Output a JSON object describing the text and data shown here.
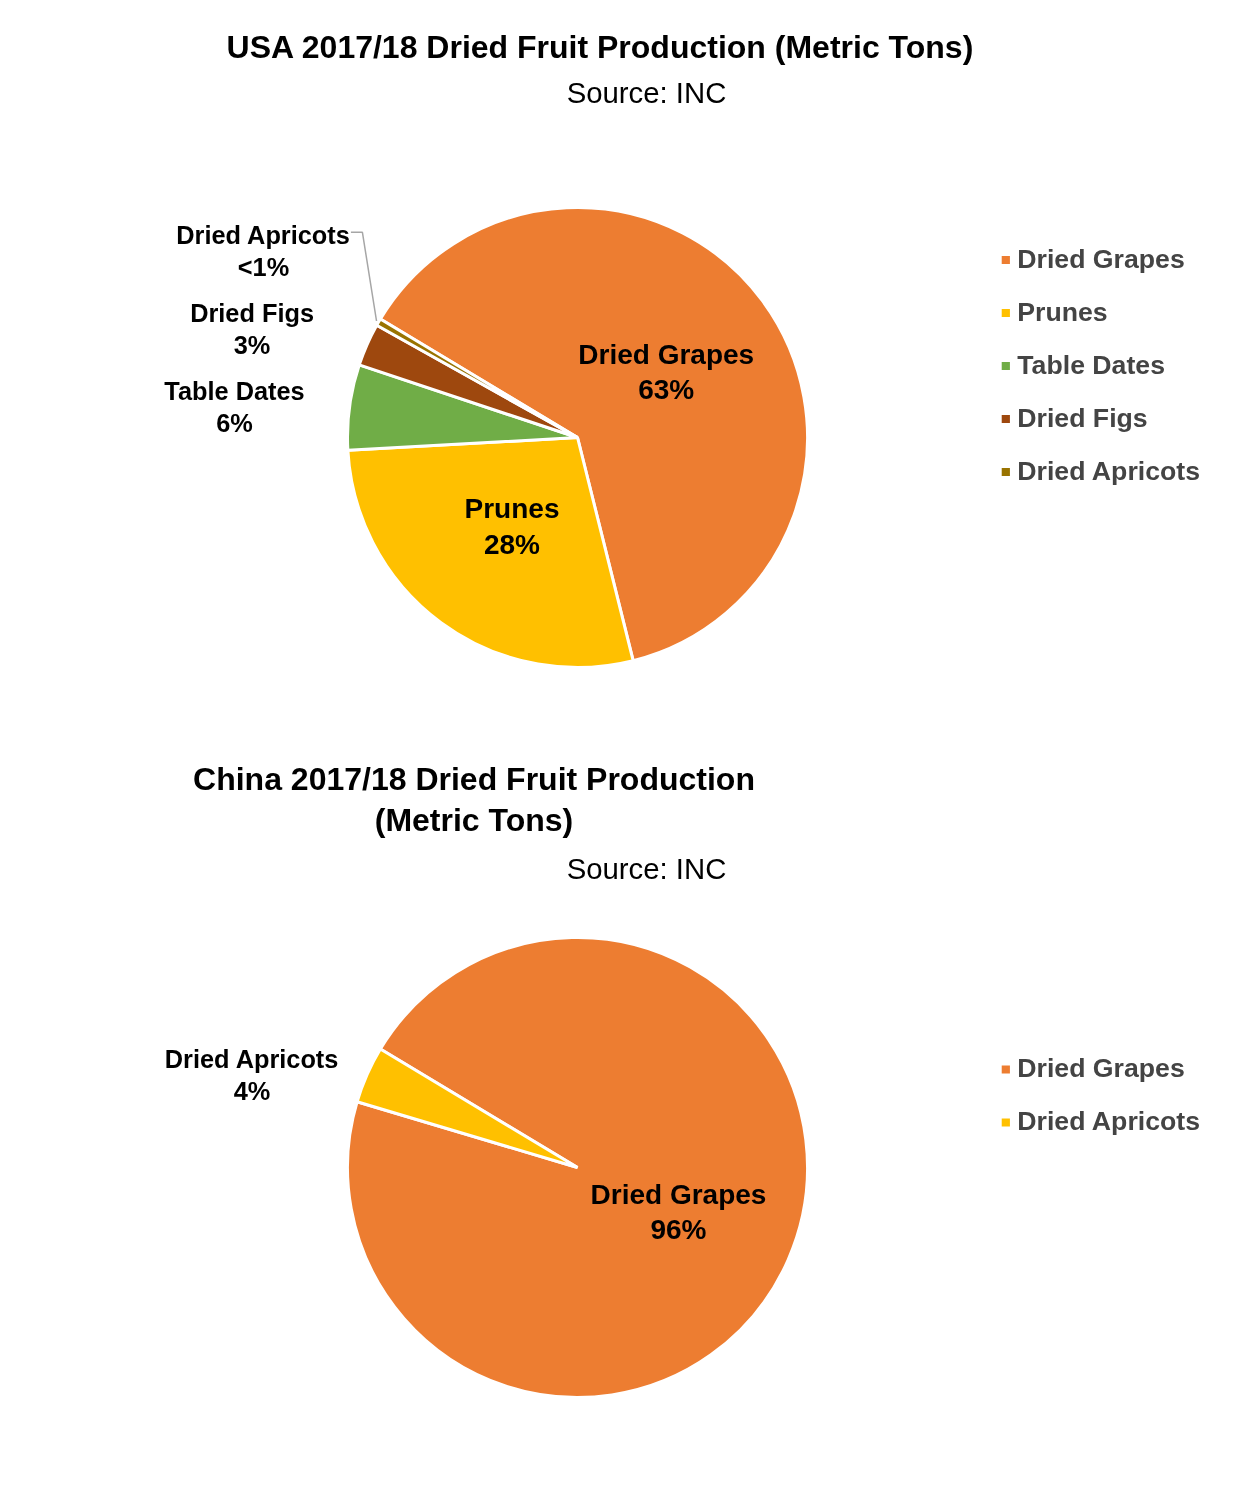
{
  "chart_data": [
    {
      "type": "pie",
      "title": "USA 2017/18 Dried Fruit Production (Metric Tons)",
      "subtitle": "Source: INC",
      "categories": [
        "Dried Grapes",
        "Prunes",
        "Table Dates",
        "Dried Figs",
        "Dried Apricots"
      ],
      "values": [
        62.5,
        28,
        6,
        3,
        0.5
      ],
      "value_labels": [
        "63%",
        "28%",
        "6%",
        "3%",
        "<1%"
      ],
      "colors": [
        "#ed7d31",
        "#ffc000",
        "#70ad47",
        "#9e480e",
        "#997300"
      ],
      "legend": "right"
    },
    {
      "type": "pie",
      "title": "China 2017/18 Dried Fruit Production (Metric Tons)",
      "subtitle": "Source: INC",
      "categories": [
        "Dried Grapes",
        "Dried Apricots"
      ],
      "values": [
        96,
        4
      ],
      "value_labels": [
        "96%",
        "4%"
      ],
      "colors": [
        "#ed7d31",
        "#ffc000"
      ],
      "legend": "right"
    }
  ]
}
